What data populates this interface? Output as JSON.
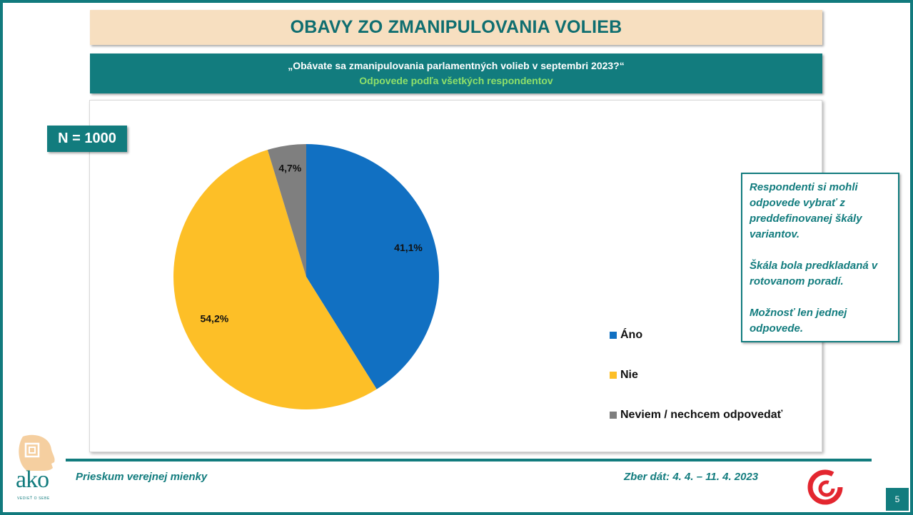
{
  "header": {
    "title": "OBAVY ZO ZMANIPULOVANIA VOLIEB",
    "question": "„Obávate sa zmanipulovania parlamentných volieb v septembri 2023?“",
    "subtitle": "Odpovede podľa všetkých respondentov"
  },
  "badge": {
    "n_label": "N = 1000"
  },
  "chart_data": {
    "type": "pie",
    "categories": [
      "Áno",
      "Nie",
      "Neviem / nechcem odpovedať"
    ],
    "values": [
      41.1,
      54.2,
      4.7
    ],
    "labels": [
      "41,1%",
      "54,2%",
      "4,7%"
    ],
    "colors": [
      "#1170c2",
      "#fdbf27",
      "#7f7f7f"
    ],
    "legend_position": "right",
    "start_angle": "12 o'clock, clockwise"
  },
  "info_box": {
    "paragraphs": [
      "Respondenti si mohli odpovede vybrať z preddefinovanej škály variantov.",
      "Škála bola predkladaná v rotovanom poradí.",
      "Možnosť len jednej odpovede."
    ]
  },
  "footer": {
    "left": "Prieskum verejnej mienky",
    "right": "Zber dát: 4. 4. – 11. 4. 2023",
    "logo_text": "ako",
    "logo_tagline": "VEDIEŤ O SEBE",
    "page_number": "5"
  }
}
